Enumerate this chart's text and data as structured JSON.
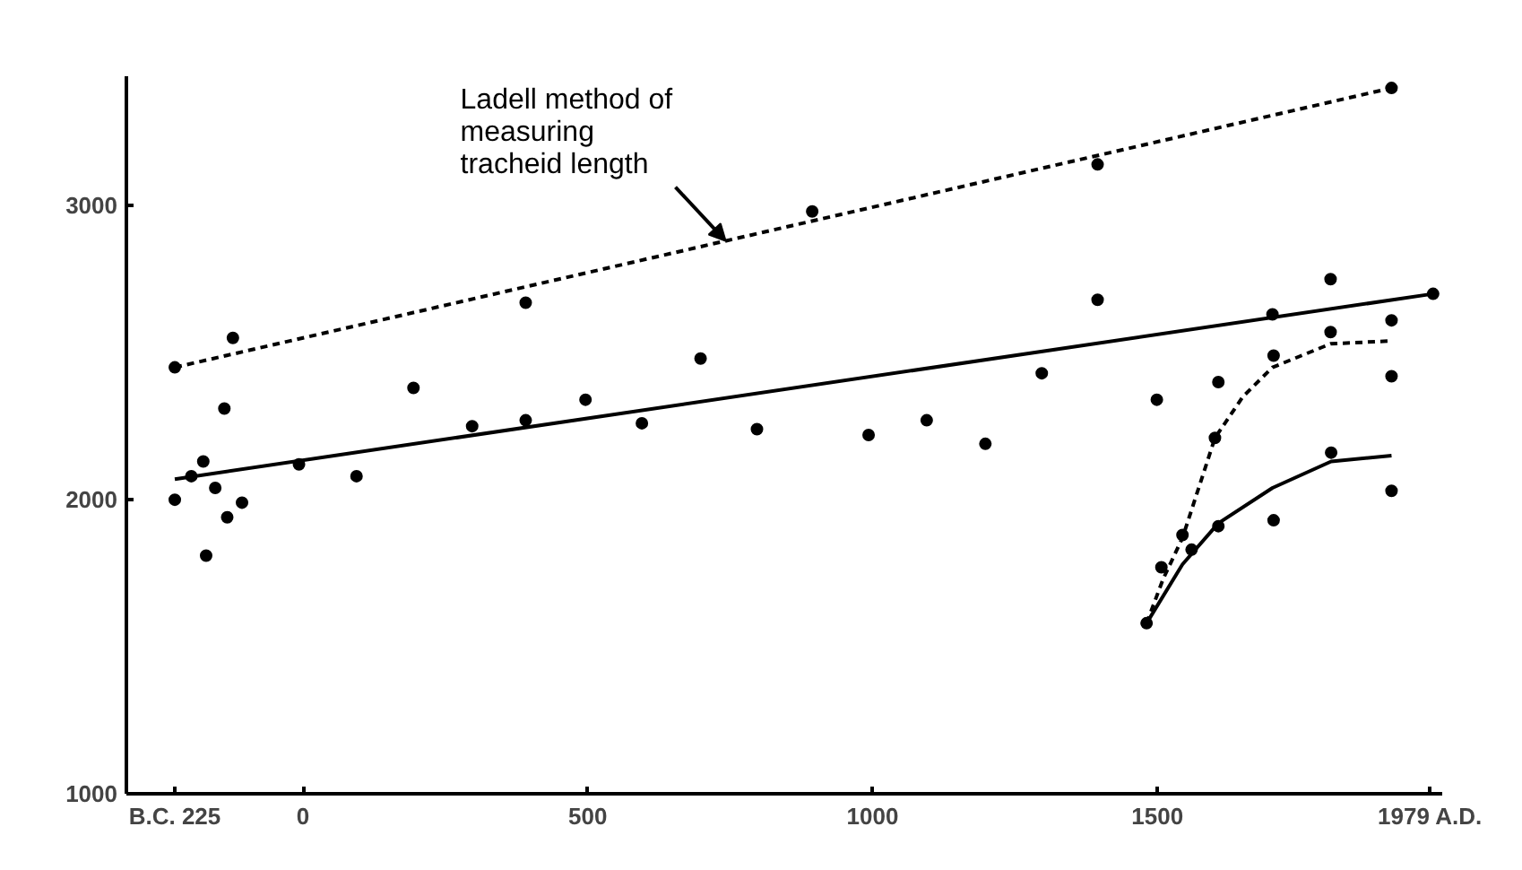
{
  "chart_data": {
    "type": "scatter",
    "xlim": [
      -310,
      2000
    ],
    "ylim": [
      1000,
      3440
    ],
    "xticks": [
      {
        "value": -225,
        "label": "B.C. 225"
      },
      0,
      500,
      1000,
      1500,
      {
        "value": 1979,
        "label": "1979 A.D."
      }
    ],
    "yticks": [
      1000,
      2000,
      3000
    ],
    "grid": false,
    "annotations": [
      {
        "text": "Ladell method of\nmeasuring\ntracheid length",
        "x": 742,
        "y": 2880
      }
    ],
    "series": [
      {
        "marker": "circle",
        "color": "#000000",
        "x": [
          -225,
          -196,
          -175,
          -170,
          -154,
          -138,
          -133,
          -123,
          -107,
          -7,
          94,
          194,
          297,
          391,
          496,
          595,
          698,
          797,
          993,
          1095,
          1198,
          1297,
          1395,
          1499,
          1607,
          1704,
          1702,
          1804,
          1911,
          1984,
          1805,
          1911,
          1704,
          1607,
          1560,
          1544,
          1507,
          1481
        ],
        "values": [
          2000,
          2080,
          2130,
          1810,
          2040,
          2310,
          1940,
          2550,
          1990,
          2120,
          2080,
          2380,
          2250,
          2270,
          2340,
          2260,
          2480,
          2240,
          2220,
          2270,
          2190,
          2430,
          2680,
          2340,
          2400,
          2490,
          2630,
          2750,
          2610,
          2700,
          2160,
          2030,
          1930,
          1910,
          1830,
          1880,
          1770,
          1580
        ]
      },
      {
        "marker": "circle",
        "color": "#000000",
        "x": [
          -225,
          391,
          894,
          1395,
          1911,
          1601,
          1804,
          1911
        ],
        "values": [
          2450,
          2670,
          2980,
          3140,
          3400,
          2210,
          2570,
          2420
        ]
      },
      {
        "type": "line",
        "line_style": "dashed",
        "color": "#000000",
        "x": [
          -225,
          1911
        ],
        "values": [
          2450,
          3400
        ]
      },
      {
        "type": "line",
        "line_style": "solid",
        "color": "#000000",
        "x": [
          -225,
          1984
        ],
        "values": [
          2070,
          2700
        ]
      },
      {
        "type": "line",
        "line_style": "dashed",
        "color": "#000000",
        "x": [
          1481,
          1510,
          1544,
          1601,
          1650,
          1702,
          1804,
          1911
        ],
        "values": [
          1580,
          1730,
          1870,
          2210,
          2350,
          2450,
          2530,
          2540
        ]
      },
      {
        "type": "line",
        "line_style": "solid",
        "color": "#000000",
        "x": [
          1481,
          1544,
          1607,
          1702,
          1805,
          1911
        ],
        "values": [
          1580,
          1780,
          1920,
          2040,
          2130,
          2150
        ]
      }
    ]
  }
}
